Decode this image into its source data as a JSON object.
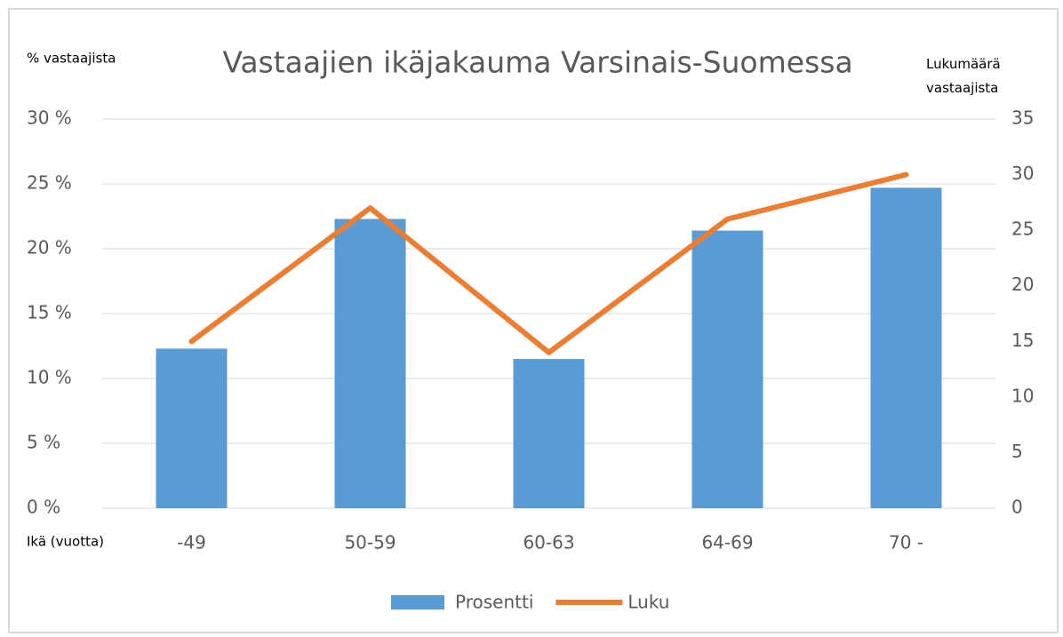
{
  "chart_data": {
    "type": "combo",
    "title": "Vastaajien ikäjakauma Varsinais-Suomessa",
    "ylabel": "% vastaajista",
    "y2label": "Lukumäärä vastaajista",
    "xlabel": "Ikä (vuotta)",
    "categories": [
      "-49",
      "50-59",
      "60-63",
      "64-69",
      "70 -"
    ],
    "series": [
      {
        "name": "Prosentti",
        "type": "bar",
        "color": "#5b9bd5",
        "values": [
          12.3,
          22.3,
          11.5,
          21.4,
          24.7
        ]
      },
      {
        "name": "Luku",
        "type": "line",
        "axis": "y2",
        "color": "#ed7d31",
        "values": [
          15,
          27,
          14,
          26,
          30
        ]
      }
    ],
    "ylim": [
      0,
      30
    ],
    "yticks": [
      {
        "value": 0,
        "label": "0 %"
      },
      {
        "value": 5,
        "label": "5 %"
      },
      {
        "value": 10,
        "label": "10 %"
      },
      {
        "value": 15,
        "label": "15 %"
      },
      {
        "value": 20,
        "label": "20 %"
      },
      {
        "value": 25,
        "label": "25 %"
      },
      {
        "value": 30,
        "label": "30 %"
      }
    ],
    "y2lim": [
      0,
      35
    ],
    "y2ticks": [
      0,
      5,
      10,
      15,
      20,
      25,
      30,
      35
    ],
    "grid": true,
    "legend": "bottom"
  }
}
